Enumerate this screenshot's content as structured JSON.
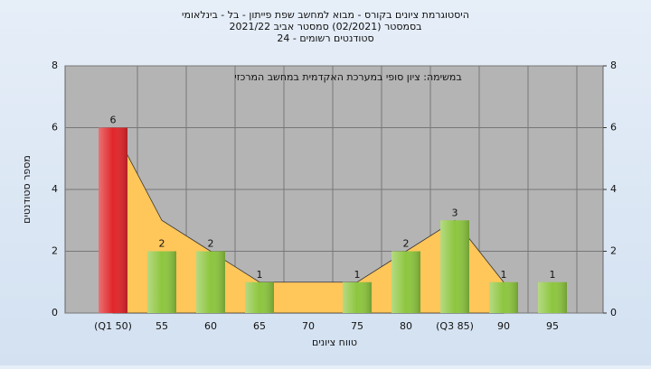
{
  "chart_data": {
    "type": "bar",
    "title": "היסטוגרמת ציונים בקורס - מבוא למחשב שפת פייתון - בל - בינלאומי",
    "subtitle": "בסמסטר  (02/2021)  סמסטר אביב 2021/22",
    "subtitle2": "סטודנטים רשומים - 24",
    "annotation": "במשימה: ציון סופי במערכת האקדמית במחשב המרכזי",
    "xlabel": "טווח ציונים",
    "ylabel": "מספר סטודנטים",
    "categories": [
      "(Q1 50)",
      "55",
      "60",
      "65",
      "70",
      "75",
      "80",
      "(Q3 85)",
      "90",
      "95"
    ],
    "series": [
      {
        "values": [
          6,
          2,
          2,
          1,
          0,
          1,
          2,
          3,
          1,
          1
        ],
        "colors": [
          "#e0262a",
          "#8dc63f",
          "#8dc63f",
          "#8dc63f",
          "#8dc63f",
          "#8dc63f",
          "#8dc63f",
          "#8dc63f",
          "#8dc63f",
          "#8dc63f"
        ]
      },
      {
        "type": "area",
        "color": "#ffc65a",
        "values": [
          6,
          3,
          2,
          1,
          1,
          1,
          2,
          3,
          1,
          null
        ]
      }
    ],
    "ylim": [
      0,
      8
    ],
    "yticks": [
      0,
      2,
      4,
      6,
      8
    ],
    "y2lim": [
      0,
      8
    ],
    "y2ticks": [
      0,
      2,
      4,
      6,
      8
    ],
    "grid": true
  }
}
